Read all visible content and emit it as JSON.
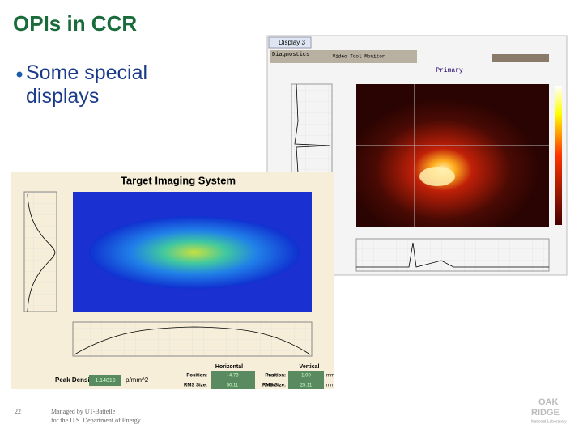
{
  "slide": {
    "title": "OPIs in CCR",
    "bullet": "Some special displays",
    "display_window": {
      "tab": "Display 3",
      "toolbar_left": "Diagnostics",
      "toolbar_center": "Video Tool Monitor",
      "plot_title": "Primary"
    },
    "target_window": {
      "title": "Target Imaging System",
      "peak_density_label": "Peak Density:",
      "peak_density_value": "1.14815",
      "peak_density_unit": "p/mm^2",
      "horizontal": "Horizontal",
      "vertical": "Vertical",
      "position_label": "Position:",
      "rms_label": "RMS Size:",
      "h_position": "+4.73",
      "v_position": "1.00",
      "h_rms": "50.11",
      "v_rms": "25.11",
      "unit": "mm"
    },
    "footer": {
      "page": "22",
      "line1": "Managed by UT-Battelle",
      "line2": "for the U.S. Department of Energy",
      "logo_line1": "OAK",
      "logo_line2": "RIDGE",
      "logo_line3": "National Laboratory"
    }
  }
}
